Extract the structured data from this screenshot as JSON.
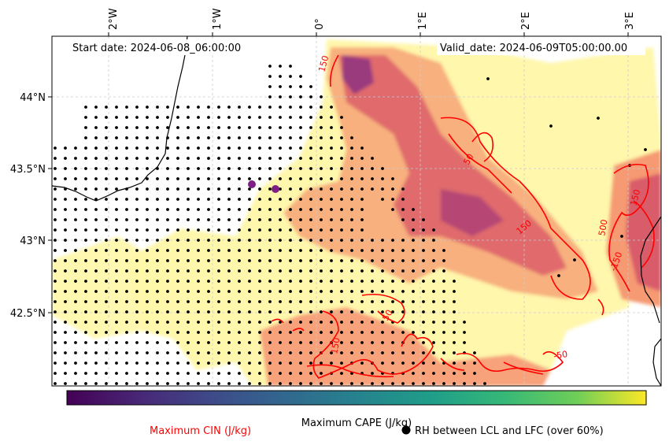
{
  "map": {
    "start_date": "Start date: 2024-06-08_06:00:00",
    "valid_date": "Valid_date: 2024-06-09T05:00:00.00",
    "lon_ticks": [
      "2°W",
      "1°W",
      "0°",
      "1°E",
      "2°E",
      "3°E"
    ],
    "lat_ticks": [
      "44°N",
      "43.5°N",
      "43°N",
      "42.5°N"
    ],
    "contour_labels": [
      "150",
      "50",
      "150",
      "500",
      "150",
      "-150",
      "50",
      "-50",
      "150"
    ]
  },
  "colorbar": {
    "label": "Maximum CAPE (J/kg)",
    "colormap": "viridis"
  },
  "legend": {
    "cin_label": "Maximum CIN (J/kg)",
    "rh_label": "RH between LCL and LFC (over 60%)",
    "cin_color": "#ff0000",
    "rh_marker_color": "#000000"
  },
  "colors": {
    "coastline": "#000000",
    "cin_contour": "#ff0000",
    "cape_low": "#fff7a8",
    "cape_mid": "#f59a72",
    "cape_high": "#d2496a",
    "cape_peak": "#7a2a80",
    "gridline": "#cccccc"
  }
}
